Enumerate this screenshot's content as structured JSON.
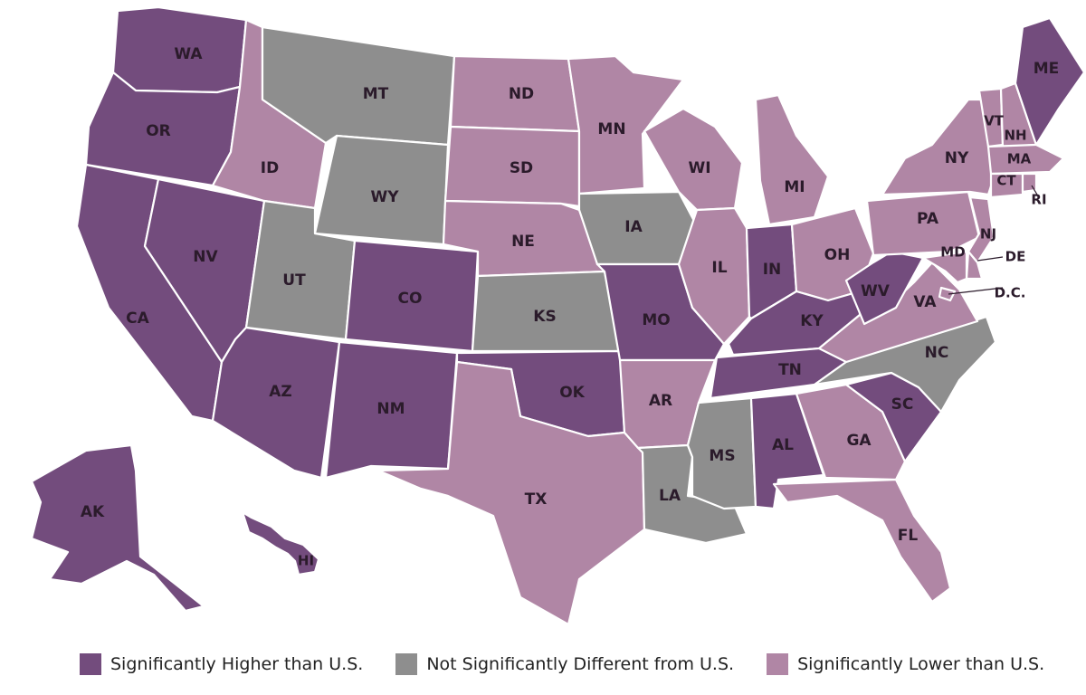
{
  "colors": {
    "higher": "#734C7D",
    "not_different": "#8E8E8E",
    "lower": "#B086A5"
  },
  "states": [
    {
      "id": "WA",
      "label": "WA",
      "category": "higher"
    },
    {
      "id": "OR",
      "label": "OR",
      "category": "higher"
    },
    {
      "id": "CA",
      "label": "CA",
      "category": "higher"
    },
    {
      "id": "NV",
      "label": "NV",
      "category": "higher"
    },
    {
      "id": "ID",
      "label": "ID",
      "category": "lower"
    },
    {
      "id": "MT",
      "label": "MT",
      "category": "not_different"
    },
    {
      "id": "WY",
      "label": "WY",
      "category": "not_different"
    },
    {
      "id": "UT",
      "label": "UT",
      "category": "not_different"
    },
    {
      "id": "AZ",
      "label": "AZ",
      "category": "higher"
    },
    {
      "id": "CO",
      "label": "CO",
      "category": "higher"
    },
    {
      "id": "NM",
      "label": "NM",
      "category": "higher"
    },
    {
      "id": "ND",
      "label": "ND",
      "category": "lower"
    },
    {
      "id": "SD",
      "label": "SD",
      "category": "lower"
    },
    {
      "id": "NE",
      "label": "NE",
      "category": "lower"
    },
    {
      "id": "KS",
      "label": "KS",
      "category": "not_different"
    },
    {
      "id": "OK",
      "label": "OK",
      "category": "higher"
    },
    {
      "id": "TX",
      "label": "TX",
      "category": "lower"
    },
    {
      "id": "MN",
      "label": "MN",
      "category": "lower"
    },
    {
      "id": "IA",
      "label": "IA",
      "category": "not_different"
    },
    {
      "id": "MO",
      "label": "MO",
      "category": "higher"
    },
    {
      "id": "AR",
      "label": "AR",
      "category": "lower"
    },
    {
      "id": "LA",
      "label": "LA",
      "category": "not_different"
    },
    {
      "id": "WI",
      "label": "WI",
      "category": "lower"
    },
    {
      "id": "IL",
      "label": "IL",
      "category": "lower"
    },
    {
      "id": "MI",
      "label": "MI",
      "category": "lower"
    },
    {
      "id": "IN",
      "label": "IN",
      "category": "higher"
    },
    {
      "id": "OH",
      "label": "OH",
      "category": "lower"
    },
    {
      "id": "KY",
      "label": "KY",
      "category": "higher"
    },
    {
      "id": "TN",
      "label": "TN",
      "category": "higher"
    },
    {
      "id": "MS",
      "label": "MS",
      "category": "not_different"
    },
    {
      "id": "AL",
      "label": "AL",
      "category": "higher"
    },
    {
      "id": "GA",
      "label": "GA",
      "category": "lower"
    },
    {
      "id": "FL",
      "label": "FL",
      "category": "lower"
    },
    {
      "id": "SC",
      "label": "SC",
      "category": "higher"
    },
    {
      "id": "NC",
      "label": "NC",
      "category": "not_different"
    },
    {
      "id": "VA",
      "label": "VA",
      "category": "lower"
    },
    {
      "id": "WV",
      "label": "WV",
      "category": "higher"
    },
    {
      "id": "PA",
      "label": "PA",
      "category": "lower"
    },
    {
      "id": "NY",
      "label": "NY",
      "category": "lower"
    },
    {
      "id": "VT",
      "label": "VT",
      "category": "lower"
    },
    {
      "id": "NH",
      "label": "NH",
      "category": "lower"
    },
    {
      "id": "ME",
      "label": "ME",
      "category": "higher"
    },
    {
      "id": "MA",
      "label": "MA",
      "category": "lower"
    },
    {
      "id": "CT",
      "label": "CT",
      "category": "lower"
    },
    {
      "id": "RI",
      "label": "RI",
      "category": "lower"
    },
    {
      "id": "NJ",
      "label": "NJ",
      "category": "lower"
    },
    {
      "id": "DE",
      "label": "DE",
      "category": "lower"
    },
    {
      "id": "MD",
      "label": "MD",
      "category": "lower"
    },
    {
      "id": "DC",
      "label": "D.C.",
      "category": "lower"
    },
    {
      "id": "AK",
      "label": "AK",
      "category": "higher"
    },
    {
      "id": "HI",
      "label": "HI",
      "category": "higher"
    }
  ],
  "legend": [
    {
      "category": "higher",
      "label": "Significantly Higher than U.S."
    },
    {
      "category": "not_different",
      "label": "Not Significantly Different from U.S."
    },
    {
      "category": "lower",
      "label": "Significantly Lower than U.S."
    }
  ]
}
